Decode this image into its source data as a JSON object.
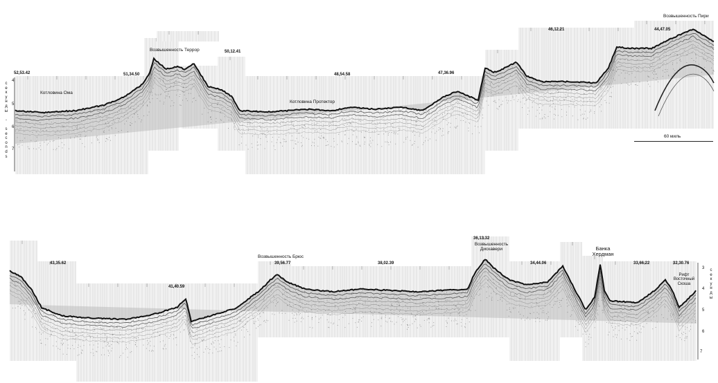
{
  "top": {
    "station_labels": [
      "52,53.42",
      "51,34.50",
      "50,12.41",
      "48,54.58",
      "47,36.96",
      "46,12.21",
      "44,47.05"
    ],
    "feature_labels": {
      "oma_basin": "Котловина Ома",
      "terror_rise": "Возвышенность Террор",
      "protector_basin": "Котловина Протектор",
      "pirie_rise": "Возвышенность Пири"
    },
    "depth_axis_title": "секунды - seconds",
    "depth_ticks": [
      "4",
      "5",
      "6",
      "7"
    ],
    "scale_bar_label": "60 миль"
  },
  "bottom": {
    "station_labels": [
      "43,35.62",
      "41,40.59",
      "39,56.77",
      "38,02.39",
      "36,13.32",
      "34,44.06",
      "33,66.22",
      "32,30.76"
    ],
    "feature_labels": {
      "bruce_rise": "Возвышенность Брюс",
      "discovery_rise": "Возвышенность Дискавери",
      "herdman_bank": "Банка Хердман",
      "east_scotia_rift": "Рифт Восточный Скоша"
    },
    "depth_axis_title": "секунды",
    "depth_ticks": [
      "3",
      "4",
      "5",
      "6",
      "7"
    ]
  }
}
